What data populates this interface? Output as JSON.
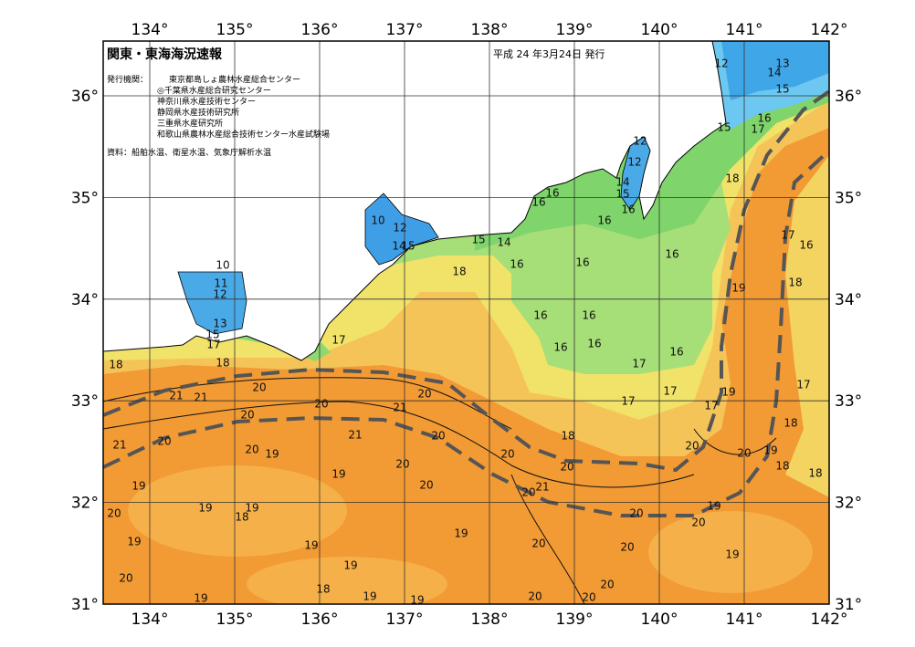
{
  "map": {
    "title": "関東・東海海況速報",
    "date": "平成 24 年3月24日 発行",
    "issuers_label": "発行機関：",
    "issuers": [
      "東京都島しょ農林水産総合センター",
      "◎千葉県水産総合研究センター",
      "神奈川県水産技術センター",
      "静岡県水産技術研究所",
      "三重県水産研究所",
      "和歌山県農林水産総合技術センター水産試験場"
    ],
    "source": "資料：船舶水温、衛星水温、気象庁解析水温",
    "longitudes": [
      "134°",
      "135°",
      "136°",
      "137°",
      "138°",
      "139°",
      "140°",
      "141°",
      "142°"
    ],
    "latitudes": [
      "36°",
      "35°",
      "34°",
      "33°",
      "32°",
      "31°"
    ],
    "isotherm_labels": [
      12,
      14,
      13,
      15,
      16,
      17,
      15,
      12,
      12,
      14,
      15,
      16,
      16,
      16,
      16,
      10,
      12,
      14,
      15,
      15,
      14,
      16,
      18,
      16,
      16,
      18,
      17,
      16,
      18,
      19,
      10,
      11,
      12,
      13,
      15,
      17,
      17,
      16,
      16,
      16,
      16,
      16,
      18,
      18,
      17,
      17,
      17,
      17,
      19,
      17,
      18,
      21,
      21,
      20,
      20,
      20,
      21,
      20,
      21,
      18,
      21,
      20,
      20,
      19,
      20,
      20,
      20,
      20,
      20,
      19,
      18,
      18,
      19,
      20,
      21,
      20,
      20,
      19,
      19,
      19,
      18,
      20,
      19,
      20,
      20,
      19,
      19,
      19,
      20,
      20,
      19,
      19,
      20,
      18,
      20,
      19,
      19,
      19,
      20,
      20
    ]
  }
}
